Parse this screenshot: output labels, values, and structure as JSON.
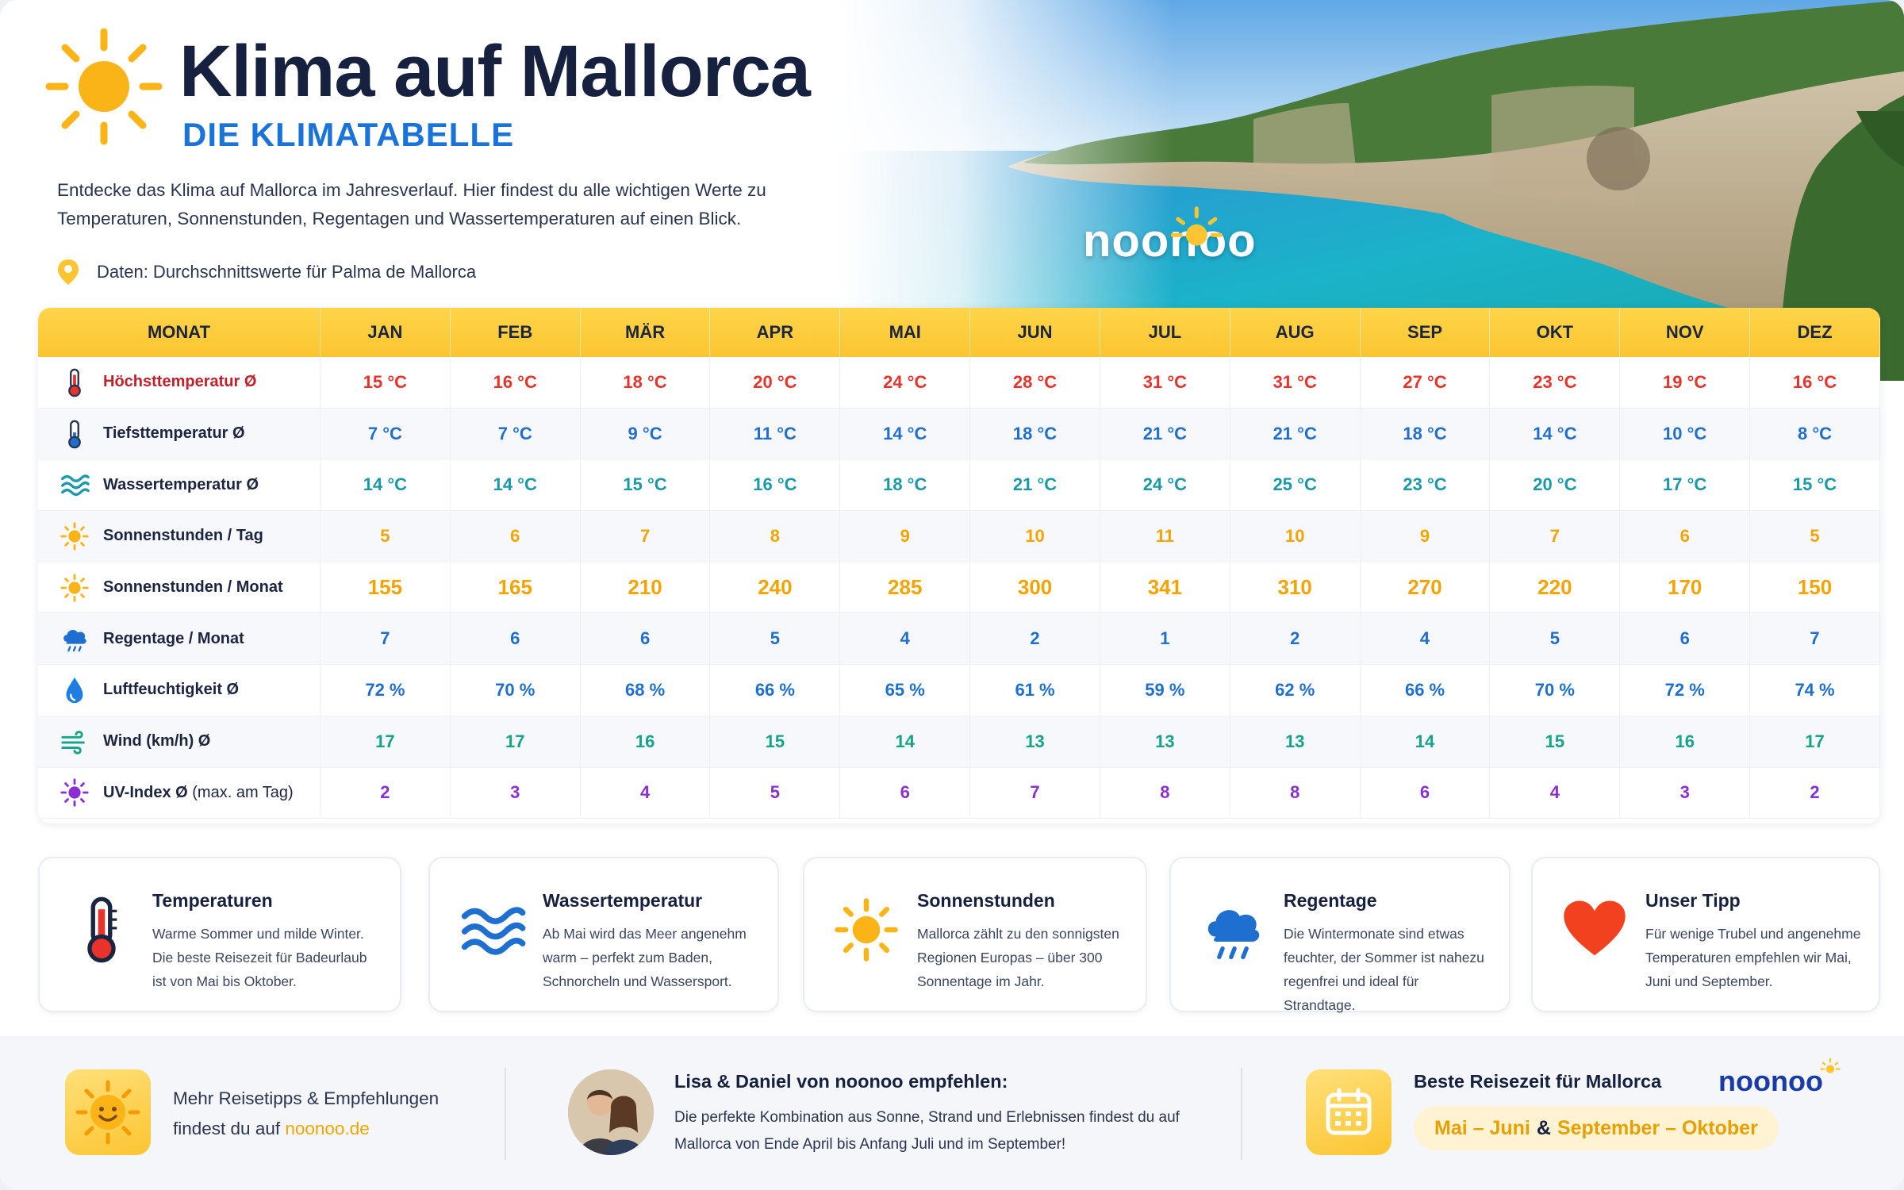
{
  "header": {
    "title": "Klima auf Mallorca",
    "subtitle": "DIE KLIMATABELLE",
    "intro": "Entdecke das Klima auf Mallorca im Jahresverlauf. Hier findest du alle wichtigen Werte zu Temperaturen, Sonnenstunden, Regentagen und Wassertemperaturen auf einen Blick.",
    "data_note": "Daten: Durchschnittswerte für Palma de Mallorca",
    "hero_logo": "noonoo"
  },
  "colors": {
    "accent_yellow": "#fbc531",
    "accent_blue": "#1a73d9",
    "temp_high": "#e8322c",
    "temp_low": "#1f6fd1",
    "water": "#1a9aa8",
    "sun": "#f4a300",
    "rain": "#1f6fd1",
    "humidity": "#1f6fd1",
    "wind": "#15a38a",
    "uv": "#8a2fd1"
  },
  "table": {
    "header_label": "MONAT",
    "months": [
      "JAN",
      "FEB",
      "MÄR",
      "APR",
      "MAI",
      "JUN",
      "JUL",
      "AUG",
      "SEP",
      "OKT",
      "NOV",
      "DEZ"
    ],
    "rows": [
      {
        "icon": "thermometer-high-icon",
        "label": "Höchsttemperatur Ø",
        "label_suffix": "",
        "color": "#e8322c",
        "big": false,
        "values": [
          "15 °C",
          "16 °C",
          "18 °C",
          "20 °C",
          "24 °C",
          "28 °C",
          "31 °C",
          "31 °C",
          "27 °C",
          "23 °C",
          "19 °C",
          "16 °C"
        ]
      },
      {
        "icon": "thermometer-low-icon",
        "label": "Tiefsttemperatur Ø",
        "label_suffix": "",
        "color": "#1f6fd1",
        "big": false,
        "values": [
          "7 °C",
          "7 °C",
          "9 °C",
          "11 °C",
          "14 °C",
          "18 °C",
          "21 °C",
          "21 °C",
          "18 °C",
          "14 °C",
          "10 °C",
          "8 °C"
        ]
      },
      {
        "icon": "waves-icon",
        "label": "Wassertemperatur Ø",
        "label_suffix": "",
        "color": "#1a9aa8",
        "big": false,
        "values": [
          "14 °C",
          "14 °C",
          "15 °C",
          "16 °C",
          "18 °C",
          "21 °C",
          "24 °C",
          "25 °C",
          "23 °C",
          "20 °C",
          "17 °C",
          "15 °C"
        ]
      },
      {
        "icon": "sun-icon",
        "label": "Sonnenstunden / Tag",
        "label_suffix": "",
        "color": "#f4a300",
        "big": false,
        "values": [
          "5",
          "6",
          "7",
          "8",
          "9",
          "10",
          "11",
          "10",
          "9",
          "7",
          "6",
          "5"
        ]
      },
      {
        "icon": "sun-icon",
        "label": "Sonnenstunden / Monat",
        "label_suffix": "",
        "color": "#f4a300",
        "big": true,
        "values": [
          "155",
          "165",
          "210",
          "240",
          "285",
          "300",
          "341",
          "310",
          "270",
          "220",
          "170",
          "150"
        ]
      },
      {
        "icon": "rain-cloud-icon",
        "label": "Regentage / Monat",
        "label_suffix": "",
        "color": "#1f6fd1",
        "big": false,
        "values": [
          "7",
          "6",
          "6",
          "5",
          "4",
          "2",
          "1",
          "2",
          "4",
          "5",
          "6",
          "7"
        ]
      },
      {
        "icon": "droplet-icon",
        "label": "Luftfeuchtigkeit Ø",
        "label_suffix": "",
        "color": "#1f6fd1",
        "big": false,
        "values": [
          "72 %",
          "70 %",
          "68 %",
          "66 %",
          "65 %",
          "61 %",
          "59 %",
          "62 %",
          "66 %",
          "70 %",
          "72 %",
          "74 %"
        ]
      },
      {
        "icon": "wind-icon",
        "label": "Wind (km/h) Ø",
        "label_suffix": "",
        "color": "#15a38a",
        "big": false,
        "values": [
          "17",
          "17",
          "16",
          "15",
          "14",
          "13",
          "13",
          "13",
          "14",
          "15",
          "16",
          "17"
        ]
      },
      {
        "icon": "uv-sun-icon",
        "label": "UV-Index Ø",
        "label_suffix": " (max. am Tag)",
        "color": "#8a2fd1",
        "big": false,
        "values": [
          "2",
          "3",
          "4",
          "5",
          "6",
          "7",
          "8",
          "8",
          "6",
          "4",
          "3",
          "2"
        ]
      }
    ]
  },
  "cards": [
    {
      "icon": "thermometer-icon",
      "title": "Temperaturen",
      "text": "Warme Sommer und milde Winter. Die beste Reisezeit für Badeurlaub ist von Mai bis Oktober."
    },
    {
      "icon": "waves-icon",
      "title": "Wassertemperatur",
      "text": "Ab Mai wird das Meer angenehm warm – perfekt zum Baden, Schnorcheln und Wassersport."
    },
    {
      "icon": "sun-icon",
      "title": "Sonnenstunden",
      "text": "Mallorca zählt zu den sonnigsten Regionen Europas – über 300 Sonnentage im Jahr."
    },
    {
      "icon": "rain-cloud-icon",
      "title": "Regentage",
      "text": "Die Wintermonate sind etwas feuchter, der Sommer ist nahezu regenfrei und ideal für Strandtage."
    },
    {
      "icon": "heart-icon",
      "title": "Unser Tipp",
      "text": "Für wenige Trubel und angenehme Temperaturen empfehlen wir Mai, Juni und September."
    }
  ],
  "footer": {
    "tips_line1": "Mehr Reisetipps & Empfehlungen",
    "tips_line2_prefix": "findest du auf ",
    "tips_link": "noonoo.de",
    "recommend_title": "Lisa & Daniel von noonoo empfehlen:",
    "recommend_text": "Die perfekte Kombination aus Sonne, Strand und Erlebnissen findest du auf Mallorca von Ende April bis Anfang Juli und im September!",
    "best_time_title": "Beste Reisezeit für Mallorca",
    "best_time_1": "Mai – Juni",
    "best_time_amp": "&",
    "best_time_2": "September – Oktober",
    "logo": "noonoo"
  }
}
